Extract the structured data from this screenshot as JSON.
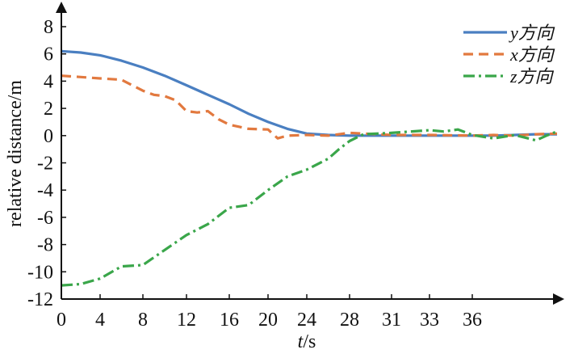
{
  "chart_data": {
    "type": "line",
    "xlabel": "t/s",
    "ylabel": "relative distance/m",
    "x_ticks": [
      "0",
      "4",
      "8",
      "12",
      "16",
      "20",
      "24",
      "28",
      "31",
      "33",
      "36"
    ],
    "ylim": [
      -12,
      8
    ],
    "y_ticks": [
      8,
      6,
      4,
      2,
      0,
      -2,
      -4,
      -6,
      -8,
      -10,
      -12
    ],
    "legend_position": "top-right",
    "grid": false,
    "series": [
      {
        "name": "y方向",
        "color": "#4a7fc1",
        "style": "solid",
        "points": [
          [
            0,
            6.2
          ],
          [
            2,
            6.1
          ],
          [
            4,
            5.9
          ],
          [
            6,
            5.5
          ],
          [
            8,
            5.0
          ],
          [
            10,
            4.4
          ],
          [
            12,
            3.7
          ],
          [
            14,
            3.0
          ],
          [
            16,
            2.3
          ],
          [
            18,
            1.6
          ],
          [
            20,
            1.0
          ],
          [
            22,
            0.5
          ],
          [
            24,
            0.15
          ],
          [
            26,
            0.05
          ],
          [
            28,
            0.0
          ],
          [
            31,
            0.0
          ],
          [
            33,
            0.0
          ],
          [
            36,
            0.0
          ],
          [
            38,
            0.0
          ],
          [
            40,
            0.05
          ],
          [
            42,
            0.1
          ],
          [
            44,
            0.1
          ]
        ]
      },
      {
        "name": "x方向",
        "color": "#e2793f",
        "style": "dashed",
        "points": [
          [
            0,
            4.4
          ],
          [
            2,
            4.3
          ],
          [
            4,
            4.2
          ],
          [
            6,
            4.1
          ],
          [
            7,
            3.7
          ],
          [
            8,
            3.3
          ],
          [
            9,
            3.0
          ],
          [
            10,
            2.9
          ],
          [
            11,
            2.6
          ],
          [
            12,
            1.8
          ],
          [
            13,
            1.7
          ],
          [
            14,
            1.8
          ],
          [
            15,
            1.2
          ],
          [
            16,
            0.8
          ],
          [
            18,
            0.5
          ],
          [
            20,
            0.45
          ],
          [
            21,
            -0.2
          ],
          [
            22,
            0.0
          ],
          [
            24,
            0.05
          ],
          [
            26,
            0.0
          ],
          [
            28,
            0.2
          ],
          [
            31,
            0.05
          ],
          [
            33,
            0.05
          ],
          [
            36,
            0.0
          ],
          [
            38,
            0.05
          ],
          [
            40,
            0.0
          ],
          [
            42,
            0.1
          ],
          [
            44,
            0.15
          ]
        ]
      },
      {
        "name": "z方向",
        "color": "#3aa64a",
        "style": "dashdot",
        "points": [
          [
            0,
            -11.0
          ],
          [
            2,
            -10.9
          ],
          [
            4,
            -10.5
          ],
          [
            6,
            -9.6
          ],
          [
            8,
            -9.5
          ],
          [
            10,
            -8.4
          ],
          [
            12,
            -7.3
          ],
          [
            14,
            -6.5
          ],
          [
            16,
            -5.3
          ],
          [
            18,
            -5.1
          ],
          [
            20,
            -4.0
          ],
          [
            22,
            -3.0
          ],
          [
            24,
            -2.5
          ],
          [
            26,
            -1.7
          ],
          [
            27,
            -1.0
          ],
          [
            28,
            -0.4
          ],
          [
            29,
            0.1
          ],
          [
            31,
            0.2
          ],
          [
            33,
            0.4
          ],
          [
            34,
            0.3
          ],
          [
            35,
            0.45
          ],
          [
            36,
            0.05
          ],
          [
            38,
            -0.2
          ],
          [
            40,
            0.05
          ],
          [
            42,
            -0.35
          ],
          [
            43,
            0.0
          ],
          [
            44,
            0.3
          ]
        ]
      }
    ]
  }
}
